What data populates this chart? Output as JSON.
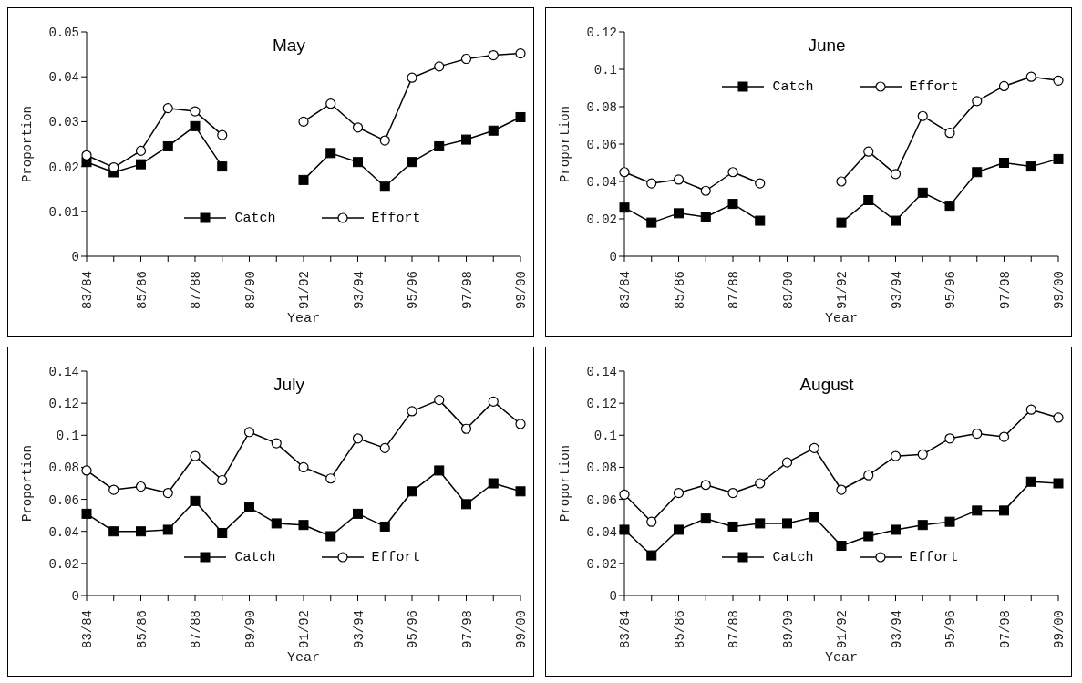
{
  "chart_data": [
    {
      "type": "line",
      "title": "May",
      "xlabel": "Year",
      "ylabel": "Proportion",
      "categories": [
        "83/84",
        null,
        "85/86",
        null,
        "87/88",
        null,
        "89/90",
        null,
        "91/92",
        null,
        "93/94",
        null,
        "95/96",
        null,
        "97/98",
        null,
        "99/00"
      ],
      "ylim": [
        0,
        0.05
      ],
      "yticks": [
        0,
        0.01,
        0.02,
        0.03,
        0.04,
        0.05
      ],
      "legend": "bottom",
      "grid": false,
      "series": [
        {
          "name": "Catch",
          "color": "#000000",
          "marker": "square",
          "values": [
            0.021,
            0.0187,
            0.0205,
            0.0245,
            0.029,
            0.02,
            null,
            null,
            0.017,
            0.023,
            0.021,
            0.0155,
            0.021,
            0.0245,
            0.026,
            0.028,
            0.031
          ]
        },
        {
          "name": "Effort",
          "color": "#000000",
          "marker": "circle",
          "values": [
            0.0225,
            0.0198,
            0.0235,
            0.033,
            0.0323,
            0.027,
            null,
            null,
            0.03,
            0.034,
            0.0287,
            0.0258,
            0.0398,
            0.0423,
            0.044,
            0.0448,
            0.0452
          ]
        }
      ]
    },
    {
      "type": "line",
      "title": "June",
      "xlabel": "Year",
      "ylabel": "Proportion",
      "categories": [
        "83/84",
        null,
        "85/86",
        null,
        "87/88",
        null,
        "89/90",
        null,
        "91/92",
        null,
        "93/94",
        null,
        "95/96",
        null,
        "97/98",
        null,
        "99/00"
      ],
      "ylim": [
        0,
        0.12
      ],
      "yticks": [
        0,
        0.02,
        0.04,
        0.06,
        0.08,
        0.1,
        0.12
      ],
      "legend": "top",
      "grid": false,
      "series": [
        {
          "name": "Catch",
          "color": "#000000",
          "marker": "square",
          "values": [
            0.026,
            0.018,
            0.023,
            0.021,
            0.028,
            0.019,
            null,
            null,
            0.018,
            0.03,
            0.019,
            0.034,
            0.027,
            0.045,
            0.05,
            0.048,
            0.052
          ]
        },
        {
          "name": "Effort",
          "color": "#000000",
          "marker": "circle",
          "values": [
            0.045,
            0.039,
            0.041,
            0.035,
            0.045,
            0.039,
            null,
            null,
            0.04,
            0.056,
            0.044,
            0.075,
            0.066,
            0.083,
            0.091,
            0.096,
            0.094
          ]
        }
      ]
    },
    {
      "type": "line",
      "title": "July",
      "xlabel": "Year",
      "ylabel": "Proportion",
      "categories": [
        "83/84",
        null,
        "85/86",
        null,
        "87/88",
        null,
        "89/90",
        null,
        "91/92",
        null,
        "93/94",
        null,
        "95/96",
        null,
        "97/98",
        null,
        "99/00"
      ],
      "ylim": [
        0,
        0.14
      ],
      "yticks": [
        0,
        0.02,
        0.04,
        0.06,
        0.08,
        0.1,
        0.12,
        0.14
      ],
      "legend": "bottom",
      "grid": false,
      "series": [
        {
          "name": "Catch",
          "color": "#000000",
          "marker": "square",
          "values": [
            0.051,
            0.04,
            0.04,
            0.041,
            0.059,
            0.039,
            0.055,
            0.045,
            0.044,
            0.037,
            0.051,
            0.043,
            0.065,
            0.078,
            0.057,
            0.07,
            0.065
          ]
        },
        {
          "name": "Effort",
          "color": "#000000",
          "marker": "circle",
          "values": [
            0.078,
            0.066,
            0.068,
            0.064,
            0.087,
            0.072,
            0.102,
            0.095,
            0.08,
            0.073,
            0.098,
            0.092,
            0.115,
            0.122,
            0.104,
            0.121,
            0.107
          ]
        }
      ]
    },
    {
      "type": "line",
      "title": "August",
      "xlabel": "Year",
      "ylabel": "Proportion",
      "categories": [
        "83/84",
        null,
        "85/86",
        null,
        "87/88",
        null,
        "89/90",
        null,
        "91/92",
        null,
        "93/94",
        null,
        "95/96",
        null,
        "97/98",
        null,
        "99/00"
      ],
      "ylim": [
        0,
        0.14
      ],
      "yticks": [
        0,
        0.02,
        0.04,
        0.06,
        0.08,
        0.1,
        0.12,
        0.14
      ],
      "legend": "bottom",
      "grid": false,
      "series": [
        {
          "name": "Catch",
          "color": "#000000",
          "marker": "square",
          "values": [
            0.041,
            0.025,
            0.041,
            0.048,
            0.043,
            0.045,
            0.045,
            0.049,
            0.031,
            0.037,
            0.041,
            0.044,
            0.046,
            0.053,
            0.053,
            0.071,
            0.07
          ]
        },
        {
          "name": "Effort",
          "color": "#000000",
          "marker": "circle",
          "values": [
            0.063,
            0.046,
            0.064,
            0.069,
            0.064,
            0.07,
            0.083,
            0.092,
            0.066,
            0.075,
            0.087,
            0.088,
            0.098,
            0.101,
            0.099,
            0.116,
            0.111
          ]
        }
      ]
    }
  ]
}
